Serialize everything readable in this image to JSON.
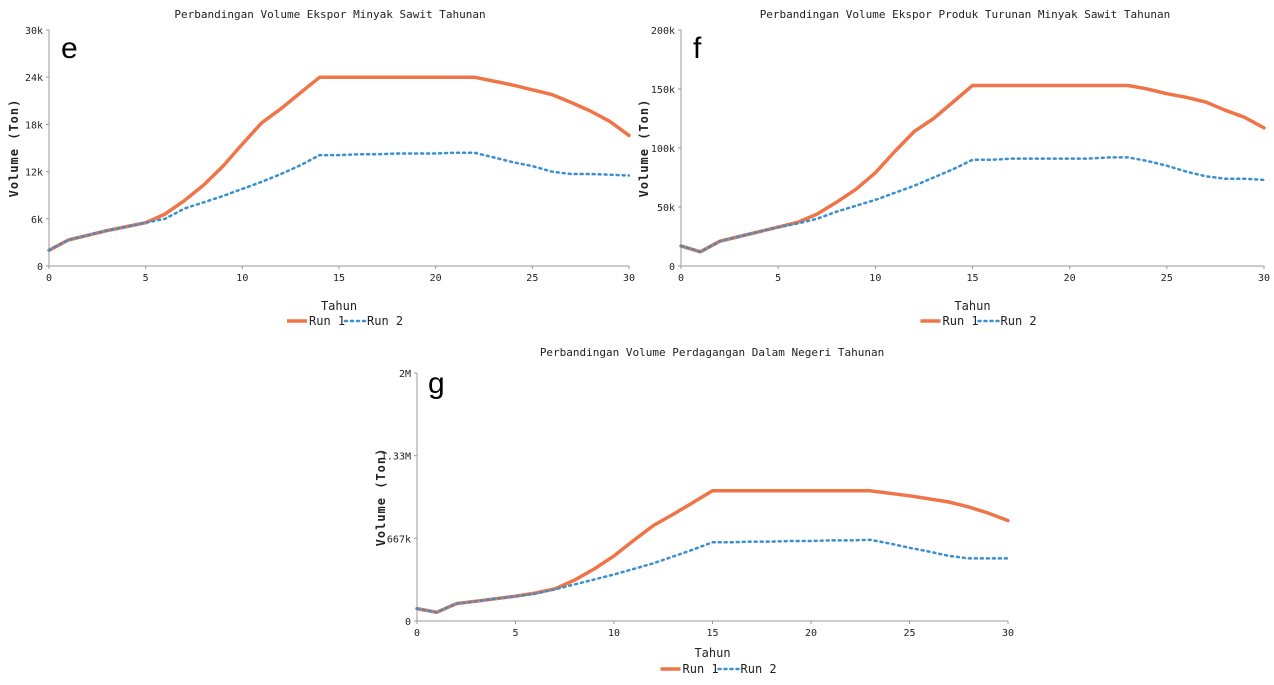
{
  "colors": {
    "run1": "#ef7548",
    "run2": "#3a8fd0",
    "axis": "#999999"
  },
  "chart_data": [
    {
      "panel": "e",
      "type": "line",
      "title": "Perbandingan Volume Ekspor Minyak Sawit Tahunan",
      "xlabel": "Tahun",
      "ylabel": "Volume (Ton)",
      "xlim": [
        0,
        30
      ],
      "ylim": [
        0,
        30000
      ],
      "xticks": [
        0,
        5,
        10,
        15,
        20,
        25,
        30
      ],
      "yticks": [
        0,
        6000,
        12000,
        18000,
        24000,
        30000
      ],
      "ytick_labels": [
        "0",
        "6k",
        "12k",
        "18k",
        "24k",
        "30k"
      ],
      "grid": false,
      "legend": "bottom-center",
      "x": [
        0,
        1,
        2,
        3,
        4,
        5,
        6,
        7,
        8,
        9,
        10,
        11,
        12,
        13,
        14,
        15,
        16,
        17,
        18,
        19,
        20,
        21,
        22,
        23,
        24,
        25,
        26,
        27,
        28,
        29,
        30
      ],
      "series": [
        {
          "name": "Run 1",
          "style": "solid",
          "values": [
            2000,
            3300,
            3900,
            4500,
            5000,
            5500,
            6600,
            8300,
            10300,
            12700,
            15500,
            18200,
            20000,
            22000,
            24000,
            24000,
            24000,
            24000,
            24000,
            24000,
            24000,
            24000,
            24000,
            23500,
            23000,
            22400,
            21800,
            20800,
            19700,
            18400,
            16600
          ]
        },
        {
          "name": "Run 2",
          "style": "dotted",
          "values": [
            2000,
            3300,
            3900,
            4500,
            5000,
            5500,
            6000,
            7300,
            8100,
            8900,
            9800,
            10700,
            11700,
            12800,
            14100,
            14100,
            14200,
            14200,
            14300,
            14300,
            14300,
            14400,
            14400,
            13800,
            13200,
            12700,
            12000,
            11700,
            11700,
            11600,
            11500
          ]
        }
      ]
    },
    {
      "panel": "f",
      "type": "line",
      "title": "Perbandingan Volume Ekspor Produk Turunan Minyak Sawit Tahunan",
      "xlabel": "Tahun",
      "ylabel": "Volume (Ton)",
      "xlim": [
        0,
        30
      ],
      "ylim": [
        0,
        200000
      ],
      "xticks": [
        0,
        5,
        10,
        15,
        20,
        25,
        30
      ],
      "yticks": [
        0,
        50000,
        100000,
        150000,
        200000
      ],
      "ytick_labels": [
        "0",
        "50k",
        "100k",
        "150k",
        "200k"
      ],
      "grid": false,
      "legend": "bottom-center",
      "x": [
        0,
        1,
        2,
        3,
        4,
        5,
        6,
        7,
        8,
        9,
        10,
        11,
        12,
        13,
        14,
        15,
        16,
        17,
        18,
        19,
        20,
        21,
        22,
        23,
        24,
        25,
        26,
        27,
        28,
        29,
        30
      ],
      "series": [
        {
          "name": "Run 1",
          "style": "solid",
          "values": [
            17000,
            12000,
            21000,
            25000,
            29000,
            33000,
            37000,
            44000,
            54000,
            65000,
            79000,
            97000,
            114000,
            125000,
            139000,
            153000,
            153000,
            153000,
            153000,
            153000,
            153000,
            153000,
            153000,
            153000,
            150000,
            146000,
            143000,
            139000,
            132000,
            126000,
            117000
          ]
        },
        {
          "name": "Run 2",
          "style": "dotted",
          "values": [
            17000,
            12000,
            21000,
            25000,
            29000,
            33000,
            36000,
            40000,
            46000,
            51000,
            56000,
            62000,
            68000,
            75000,
            82000,
            90000,
            90000,
            91000,
            91000,
            91000,
            91000,
            91000,
            92000,
            92000,
            89000,
            85000,
            80000,
            76000,
            74000,
            74000,
            73000
          ]
        }
      ]
    },
    {
      "panel": "g",
      "type": "line",
      "title": "Perbandingan Volume Perdagangan Dalam Negeri Tahunan",
      "xlabel": "Tahun",
      "ylabel": "Volume (Ton)",
      "xlim": [
        0,
        30
      ],
      "ylim": [
        0,
        2000000
      ],
      "xticks": [
        0,
        5,
        10,
        15,
        20,
        25,
        30
      ],
      "yticks": [
        0,
        667000,
        1333000,
        2000000
      ],
      "ytick_labels": [
        "0",
        "667k",
        "1.33M",
        "2M"
      ],
      "grid": false,
      "legend": "bottom-center",
      "x": [
        0,
        1,
        2,
        3,
        4,
        5,
        6,
        7,
        8,
        9,
        10,
        11,
        12,
        13,
        14,
        15,
        16,
        17,
        18,
        19,
        20,
        21,
        22,
        23,
        24,
        25,
        26,
        27,
        28,
        29,
        30
      ],
      "series": [
        {
          "name": "Run 1",
          "style": "solid",
          "values": [
            100000,
            70000,
            140000,
            160000,
            180000,
            200000,
            225000,
            260000,
            330000,
            420000,
            525000,
            650000,
            770000,
            860000,
            955000,
            1050000,
            1050000,
            1050000,
            1050000,
            1050000,
            1050000,
            1050000,
            1050000,
            1050000,
            1030000,
            1010000,
            985000,
            960000,
            920000,
            870000,
            810000
          ]
        },
        {
          "name": "Run 2",
          "style": "dotted",
          "values": [
            100000,
            70000,
            140000,
            160000,
            180000,
            200000,
            220000,
            255000,
            295000,
            335000,
            375000,
            420000,
            465000,
            520000,
            575000,
            635000,
            635000,
            640000,
            640000,
            645000,
            645000,
            650000,
            650000,
            655000,
            625000,
            590000,
            560000,
            525000,
            505000,
            505000,
            505000
          ]
        }
      ]
    }
  ]
}
